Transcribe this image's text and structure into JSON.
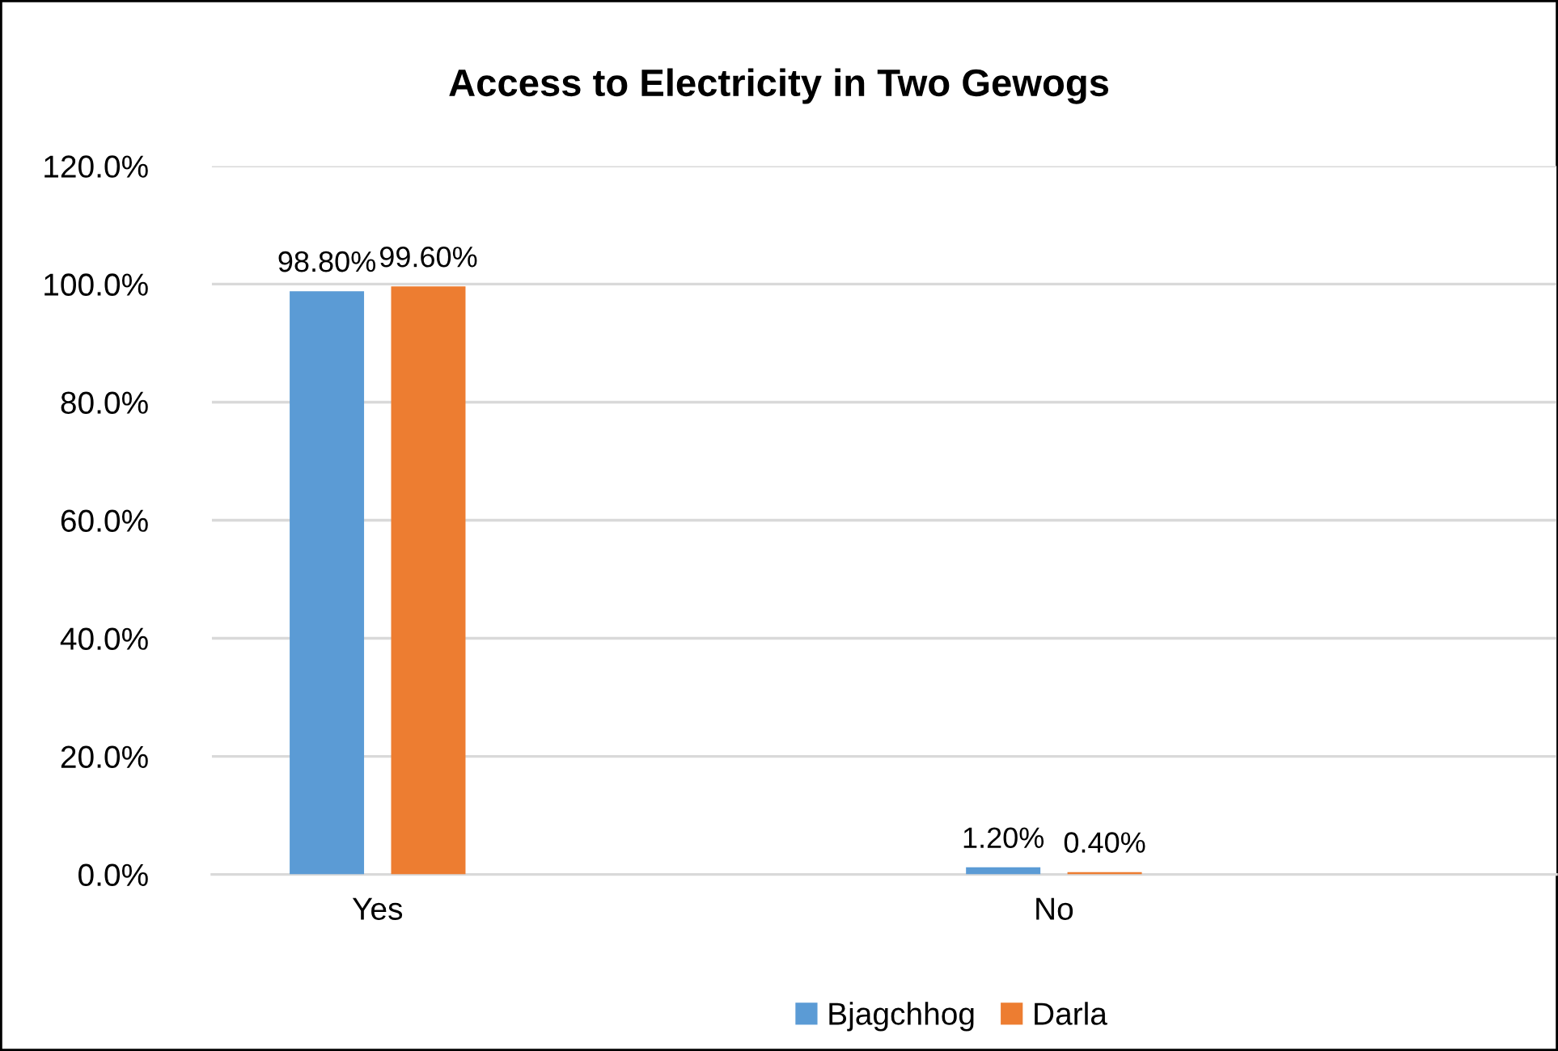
{
  "chart_data": {
    "type": "bar",
    "title": "Access to Electricity in Two Gewogs",
    "categories": [
      "Yes",
      "No"
    ],
    "series": [
      {
        "name": "Bjagchhog",
        "color": "#5b9bd5",
        "values": [
          98.8,
          1.2
        ],
        "value_labels": [
          "98.80%",
          "1.20%"
        ]
      },
      {
        "name": "Darla",
        "color": "#ed7d31",
        "values": [
          99.6,
          0.4
        ],
        "value_labels": [
          "99.60%",
          "0.40%"
        ]
      }
    ],
    "ylim": [
      0,
      120
    ],
    "yticks": [
      {
        "value": 0,
        "label": "0.0%"
      },
      {
        "value": 20,
        "label": "20.0%"
      },
      {
        "value": 40,
        "label": "40.0%"
      },
      {
        "value": 60,
        "label": "60.0%"
      },
      {
        "value": 80,
        "label": "80.0%"
      },
      {
        "value": 100,
        "label": "100.0%"
      },
      {
        "value": 120,
        "label": "120.0%"
      }
    ],
    "grid": "y",
    "legend": "bottom"
  }
}
